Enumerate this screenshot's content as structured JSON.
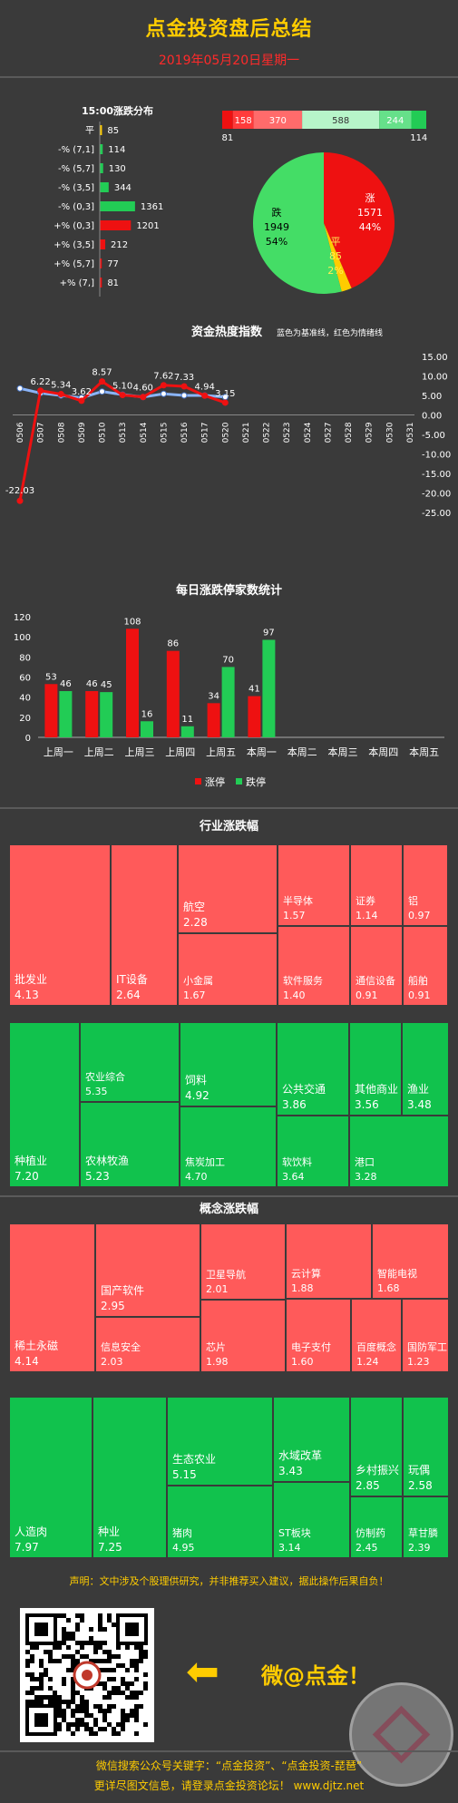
{
  "header": {
    "title": "点金投资盘后总结",
    "date": "2019年05月20日星期一"
  },
  "distribution": {
    "title": "15:00涨跌分布",
    "rows": [
      {
        "label": "平",
        "value": 85,
        "color": "#ffcc00"
      },
      {
        "label": "-% (7,1]",
        "value": 114,
        "color": "#22cc55"
      },
      {
        "label": "-% (5,7]",
        "value": 130,
        "color": "#22cc55"
      },
      {
        "label": "-% (3,5]",
        "value": 344,
        "color": "#22cc55"
      },
      {
        "label": "-% (0,3]",
        "value": 1361,
        "color": "#22cc55"
      },
      {
        "label": "+% (0,3]",
        "value": 1201,
        "color": "#ee1111"
      },
      {
        "label": "+% (3,5]",
        "value": 212,
        "color": "#ee1111"
      },
      {
        "label": "+% (5,7]",
        "value": 77,
        "color": "#ee1111"
      },
      {
        "label": "+% (7,]",
        "value": 81,
        "color": "#ee1111"
      }
    ]
  },
  "stackbar": {
    "segments": [
      {
        "value": 81,
        "color": "#ee1111",
        "label": "",
        "below": "81"
      },
      {
        "value": 158,
        "color": "#ff3b3b",
        "label": "158",
        "below": ""
      },
      {
        "value": 370,
        "color": "#ff6b6b",
        "label": "370",
        "below": ""
      },
      {
        "value": 588,
        "color": "#b7f5c9",
        "label": "588",
        "below": ""
      },
      {
        "value": 244,
        "color": "#66e08a",
        "label": "244",
        "below": ""
      },
      {
        "value": 114,
        "color": "#22cc55",
        "label": "",
        "below": "114"
      }
    ]
  },
  "pie": {
    "slices": [
      {
        "name": "涨",
        "value": 1571,
        "pct": "44%",
        "color": "#ee1111"
      },
      {
        "name": "平",
        "value": 85,
        "pct": "2%",
        "color": "#ffcc00"
      },
      {
        "name": "跌",
        "value": 1949,
        "pct": "54%",
        "color": "#44dd66"
      }
    ]
  },
  "heat": {
    "title": "资金热度指数",
    "legend_note": "蓝色为基准线，红色为情绪线",
    "x": [
      "0506",
      "0507",
      "0508",
      "0509",
      "0510",
      "0513",
      "0514",
      "0515",
      "0516",
      "0517",
      "0520",
      "0521",
      "0522",
      "0523",
      "0524",
      "0527",
      "0528",
      "0529",
      "0530",
      "0531"
    ],
    "red": [
      -22.03,
      6.22,
      5.34,
      3.62,
      8.57,
      5.1,
      4.6,
      7.62,
      7.33,
      4.94,
      3.15
    ],
    "blue": [
      6.8,
      5.6,
      5.0,
      4.4,
      6.0,
      5.2,
      4.6,
      5.4,
      5.0,
      5.0,
      4.6
    ],
    "labels": [
      "-22.03",
      "6.22",
      "5.34",
      "3.62",
      "8.57",
      "5.10",
      "4.60",
      "7.62",
      "7.33",
      "4.94",
      "3.15"
    ],
    "yticks": [
      "15.00",
      "10.00",
      "5.00",
      "0.00",
      "-5.00",
      "-10.00",
      "-15.00",
      "-20.00",
      "-25.00"
    ],
    "ylim": [
      -25,
      15
    ]
  },
  "daily": {
    "title": "每日涨跌停家数统计",
    "categories": [
      "上周一",
      "上周二",
      "上周三",
      "上周四",
      "上周五",
      "本周一",
      "本周二",
      "本周三",
      "本周四",
      "本周五"
    ],
    "up": [
      53,
      46,
      108,
      86,
      34,
      41
    ],
    "down": [
      46,
      45,
      16,
      11,
      70,
      97
    ],
    "yticks": [
      "120",
      "100",
      "80",
      "60",
      "40",
      "20",
      "0"
    ],
    "ylim": [
      0,
      120
    ],
    "legend_up": "涨停",
    "legend_down": "跌停"
  },
  "industry": {
    "title": "行业涨跌幅",
    "up": [
      {
        "name": "批发业",
        "value": "4.13"
      },
      {
        "name": "IT设备",
        "value": "2.64"
      },
      {
        "name": "航空",
        "value": "2.28"
      },
      {
        "name": "小金属",
        "value": "1.67"
      },
      {
        "name": "半导体",
        "value": "1.57"
      },
      {
        "name": "软件服务",
        "value": "1.40"
      },
      {
        "name": "证券",
        "value": "1.14"
      },
      {
        "name": "通信设备",
        "value": "0.91"
      },
      {
        "name": "铝",
        "value": "0.97"
      },
      {
        "name": "船舶",
        "value": "0.91"
      }
    ],
    "down": [
      {
        "name": "种植业",
        "value": "7.20"
      },
      {
        "name": "农业综合",
        "value": "5.35"
      },
      {
        "name": "农林牧渔",
        "value": "5.23"
      },
      {
        "name": "饲料",
        "value": "4.92"
      },
      {
        "name": "焦炭加工",
        "value": "4.70"
      },
      {
        "name": "公共交通",
        "value": "3.86"
      },
      {
        "name": "软饮料",
        "value": "3.64"
      },
      {
        "name": "其他商业",
        "value": "3.56"
      },
      {
        "name": "渔业",
        "value": "3.48"
      },
      {
        "name": "港口",
        "value": "3.28"
      }
    ]
  },
  "concept": {
    "title": "概念涨跌幅",
    "up": [
      {
        "name": "稀土永磁",
        "value": "4.14"
      },
      {
        "name": "国产软件",
        "value": "2.95"
      },
      {
        "name": "信息安全",
        "value": "2.03"
      },
      {
        "name": "卫星导航",
        "value": "2.01"
      },
      {
        "name": "芯片",
        "value": "1.98"
      },
      {
        "name": "云计算",
        "value": "1.88"
      },
      {
        "name": "智能电视",
        "value": "1.68"
      },
      {
        "name": "电子支付",
        "value": "1.60"
      },
      {
        "name": "百度概念",
        "value": "1.24"
      },
      {
        "name": "国防军工",
        "value": "1.23"
      }
    ],
    "down": [
      {
        "name": "人造肉",
        "value": "7.97"
      },
      {
        "name": "种业",
        "value": "7.25"
      },
      {
        "name": "生态农业",
        "value": "5.15"
      },
      {
        "name": "猪肉",
        "value": "4.95"
      },
      {
        "name": "水域改革",
        "value": "3.43"
      },
      {
        "name": "ST板块",
        "value": "3.14"
      },
      {
        "name": "乡村振兴",
        "value": "2.85"
      },
      {
        "name": "仿制药",
        "value": "2.45"
      },
      {
        "name": "玩偶",
        "value": "2.58"
      },
      {
        "name": "草甘膦",
        "value": "2.39"
      }
    ]
  },
  "disclaimer": "声明：文中涉及个股理供研究，并非推荐买入建议，据此操作后果自负！",
  "promo": {
    "weibo": "微@点金！",
    "arrow": "⬅"
  },
  "footer": {
    "line1": "微信搜索公众号关键字：“点金投资”、“点金投资-琵琶”",
    "line2": "更详尽图文信息，请登录点金投资论坛！ www.djtz.net"
  },
  "colors": {
    "up": "#ff5a5a",
    "down": "#11c24d",
    "accent": "#ffcc00"
  }
}
